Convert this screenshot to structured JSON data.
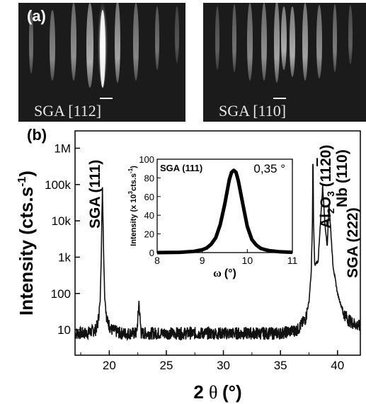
{
  "panel_a": {
    "label": "(a)",
    "images": [
      {
        "caption": "SGA [112]",
        "marker": "—"
      },
      {
        "caption": "SGA [110]",
        "marker": "—"
      }
    ]
  },
  "panel_b": {
    "label": "(b)"
  },
  "chart_data": [
    {
      "type": "line",
      "xlabel": "2 θ (°)",
      "ylabel": "Intensity (cts.s-1)",
      "xlim": [
        17,
        42
      ],
      "ylim": [
        2,
        3000000
      ],
      "yscale": "log",
      "xticks": [
        20,
        25,
        30,
        35,
        40
      ],
      "yticks": [
        10,
        100,
        1000,
        10000,
        100000,
        1000000
      ],
      "yticklabels": [
        "10",
        "100",
        "1k",
        "10k",
        "100k",
        "1M"
      ],
      "series": [
        {
          "values": [
            [
              17,
              8
            ],
            [
              18,
              8
            ],
            [
              18.8,
              10
            ],
            [
              19.0,
              15
            ],
            [
              19.2,
              60
            ],
            [
              19.3,
              1200
            ],
            [
              19.4,
              85000
            ],
            [
              19.5,
              1500
            ],
            [
              19.6,
              80
            ],
            [
              19.8,
              18
            ],
            [
              20.2,
              10
            ],
            [
              21,
              8
            ],
            [
              22.4,
              8
            ],
            [
              22.55,
              30
            ],
            [
              22.6,
              62
            ],
            [
              22.65,
              30
            ],
            [
              22.8,
              8
            ],
            [
              25,
              8
            ],
            [
              30,
              8
            ],
            [
              35,
              8
            ],
            [
              36.5,
              10
            ],
            [
              37.2,
              20
            ],
            [
              37.5,
              60
            ],
            [
              37.7,
              400
            ],
            [
              37.8,
              9000
            ],
            [
              37.85,
              880000
            ],
            [
              37.9,
              9000
            ],
            [
              38.0,
              600
            ],
            [
              38.3,
              800
            ],
            [
              38.5,
              8000
            ],
            [
              38.7,
              90000
            ],
            [
              38.9,
              8000
            ],
            [
              39.1,
              2000
            ],
            [
              39.25,
              30000
            ],
            [
              39.4,
              6000
            ],
            [
              39.6,
              600
            ],
            [
              40.0,
              100
            ],
            [
              40.5,
              30
            ],
            [
              41,
              18
            ],
            [
              42,
              12
            ]
          ]
        }
      ],
      "annotations": [
        {
          "text": "SGA (111)",
          "x": 19.4
        },
        {
          "text": "Al2O3 (11̄20)",
          "x": 37.85
        },
        {
          "text": "Nb (110)",
          "x": 38.7
        },
        {
          "text": "SGA (222)",
          "x": 39.25
        }
      ]
    },
    {
      "type": "line",
      "title": "SGA (111)",
      "annotation": "0,35 °",
      "xlabel": "ω (°)",
      "ylabel": "Intensity (x 103cts.s-1)",
      "xlim": [
        8,
        11
      ],
      "ylim": [
        0,
        100
      ],
      "xticks": [
        8,
        9,
        10,
        11
      ],
      "yticks": [
        0,
        20,
        40,
        60,
        80,
        100
      ],
      "series": [
        {
          "values": [
            [
              8.0,
              0
            ],
            [
              8.5,
              0.3
            ],
            [
              8.8,
              1.2
            ],
            [
              9.0,
              3
            ],
            [
              9.1,
              5
            ],
            [
              9.2,
              9
            ],
            [
              9.3,
              16
            ],
            [
              9.4,
              30
            ],
            [
              9.5,
              52
            ],
            [
              9.6,
              78
            ],
            [
              9.65,
              86
            ],
            [
              9.7,
              88
            ],
            [
              9.75,
              86
            ],
            [
              9.8,
              77
            ],
            [
              9.9,
              52
            ],
            [
              10.0,
              28
            ],
            [
              10.1,
              14
            ],
            [
              10.2,
              8
            ],
            [
              10.3,
              4.5
            ],
            [
              10.4,
              3
            ],
            [
              10.5,
              2
            ],
            [
              10.7,
              1
            ],
            [
              11.0,
              0.3
            ]
          ]
        }
      ]
    }
  ]
}
